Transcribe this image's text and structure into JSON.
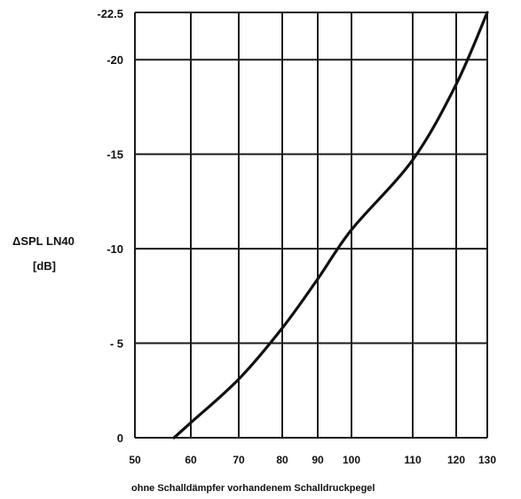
{
  "chart_data": {
    "type": "line",
    "title": "",
    "ylabel": "ΔSPL LN40",
    "yunit": "[dB]",
    "xlabel": "ohne Schalldämpfer vorhandenem Schalldruckpegel",
    "grid": true,
    "x_ticks": [
      50,
      60,
      70,
      80,
      90,
      100,
      110,
      120,
      130
    ],
    "x_tick_labels": [
      "50",
      "60",
      "70",
      "80",
      "90",
      "100",
      "110",
      "120",
      "130"
    ],
    "y_ticks": [
      0,
      5,
      10,
      15,
      20,
      22.5
    ],
    "y_tick_labels": [
      "0",
      "- 5",
      "-10",
      "-15",
      "-20",
      "-22.5"
    ],
    "ylim": [
      0,
      22.5
    ],
    "series": [
      {
        "x": [
          57,
          60,
          70,
          80,
          90,
          100,
          110,
          120,
          130
        ],
        "y": [
          0,
          0.8,
          3.1,
          5.8,
          8.4,
          11.0,
          14.7,
          18.7,
          22.5
        ]
      }
    ]
  }
}
